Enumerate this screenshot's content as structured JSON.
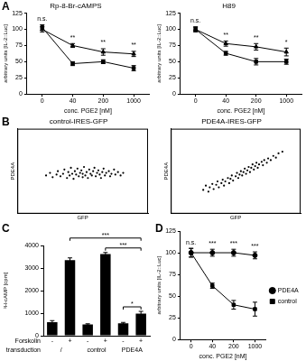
{
  "chart_data": [
    {
      "panel": "A",
      "type": "line",
      "title": "Rp-8-Br-cAMPS",
      "x_label": "conc. PGE2 [nM]",
      "y_label": "arbitrary units [IL-2::Luc]",
      "categories": [
        "0",
        "40",
        "200",
        "1000"
      ],
      "ylim": [
        0,
        125
      ],
      "yticks": [
        0,
        25,
        50,
        75,
        100,
        125
      ],
      "grid": false,
      "series": [
        {
          "color": "#000000",
          "marker": "triangle",
          "values": [
            100,
            75,
            65,
            62
          ],
          "errors": [
            4,
            3,
            5,
            4
          ]
        },
        {
          "color": "#000000",
          "marker": "square",
          "values": [
            103,
            47,
            50,
            40
          ],
          "errors": [
            4,
            3,
            3,
            4
          ]
        }
      ],
      "annotations": [
        "n.s.",
        "**",
        "**",
        "**"
      ]
    },
    {
      "type": "line",
      "title": "H89",
      "x_label": "conc. PGE2 [nM]",
      "y_label": "arbitrary units [IL-2::Luc]",
      "categories": [
        "0",
        "40",
        "200",
        "1000"
      ],
      "ylim": [
        0,
        125
      ],
      "yticks": [
        0,
        25,
        50,
        75,
        100,
        125
      ],
      "grid": false,
      "series": [
        {
          "color": "#000000",
          "marker": "triangle",
          "values": [
            100,
            78,
            73,
            65
          ],
          "errors": [
            4,
            4,
            5,
            6
          ]
        },
        {
          "color": "#000000",
          "marker": "square",
          "values": [
            100,
            63,
            50,
            50
          ],
          "errors": [
            3,
            3,
            5,
            4
          ]
        }
      ],
      "annotations": [
        "n.s.",
        "**",
        "**",
        "*"
      ]
    },
    {
      "panel": "B",
      "type": "scatter",
      "title": "control-IRES-GFP",
      "x_label": "GFP",
      "y_label": "PDE4A",
      "xlim": [
        0,
        100
      ],
      "ylim": [
        0,
        100
      ],
      "tick_labels": false,
      "grid": false,
      "color": "#000000",
      "x": [
        22,
        25,
        27,
        30,
        31,
        33,
        35,
        36,
        38,
        39,
        40,
        41,
        42,
        43,
        44,
        45,
        46,
        47,
        48,
        49,
        50,
        50,
        51,
        52,
        53,
        54,
        55,
        56,
        57,
        58,
        59,
        60,
        61,
        62,
        63,
        64,
        65,
        66,
        67,
        68,
        70,
        71,
        72,
        74,
        75,
        77,
        79,
        81
      ],
      "values": [
        45,
        48,
        43,
        46,
        50,
        44,
        47,
        52,
        42,
        49,
        45,
        54,
        47,
        41,
        50,
        46,
        53,
        44,
        48,
        51,
        43,
        47,
        55,
        45,
        49,
        42,
        52,
        47,
        45,
        50,
        54,
        44,
        48,
        51,
        46,
        42,
        49,
        53,
        45,
        48,
        50,
        44,
        47,
        52,
        46,
        49,
        45,
        48
      ]
    },
    {
      "type": "scatter",
      "title": "PDE4A-IRES-GFP",
      "x_label": "GFP",
      "y_label": "PDE4A",
      "xlim": [
        0,
        100
      ],
      "ylim": [
        0,
        100
      ],
      "tick_labels": false,
      "grid": false,
      "color": "#000000",
      "x": [
        25,
        27,
        29,
        30,
        32,
        33,
        35,
        36,
        37,
        39,
        40,
        41,
        42,
        44,
        45,
        46,
        47,
        48,
        50,
        51,
        52,
        53,
        54,
        55,
        56,
        57,
        58,
        59,
        60,
        61,
        62,
        63,
        64,
        65,
        66,
        67,
        68,
        70,
        71,
        72,
        74,
        75,
        77,
        79,
        81,
        83,
        86
      ],
      "values": [
        28,
        33,
        26,
        31,
        35,
        29,
        34,
        38,
        31,
        36,
        40,
        33,
        38,
        42,
        36,
        41,
        45,
        39,
        44,
        48,
        42,
        46,
        50,
        45,
        49,
        53,
        47,
        51,
        55,
        49,
        54,
        58,
        52,
        56,
        60,
        54,
        58,
        61,
        57,
        63,
        60,
        65,
        63,
        68,
        66,
        71,
        73
      ]
    },
    {
      "panel": "C",
      "type": "bar",
      "y_label": "³H-cAMP [cpm]",
      "categories": [
        "-",
        "+",
        "-",
        "+",
        "-",
        "+"
      ],
      "category_row_label": "Forskolin",
      "groups": [
        "/",
        "control",
        "PDE4A"
      ],
      "group_row_label": "transduction",
      "values": [
        600,
        3350,
        500,
        3620,
        550,
        980
      ],
      "errors": [
        70,
        100,
        30,
        70,
        40,
        100
      ],
      "color": "#000000",
      "ylim": [
        0,
        4000
      ],
      "yticks": [
        0,
        1000,
        2000,
        3000,
        4000
      ],
      "grid": false,
      "brackets": [
        {
          "from": 1,
          "to": 5,
          "label": "***"
        },
        {
          "from": 3,
          "to": 5,
          "label": "***"
        },
        {
          "from": 4,
          "to": 5,
          "label": "*"
        }
      ]
    },
    {
      "panel": "D",
      "type": "line",
      "x_label": "conc. PGE2 [nM]",
      "y_label": "arbitrary units [IL-2::Luc]",
      "categories": [
        "0",
        "40",
        "200",
        "1000"
      ],
      "ylim": [
        0,
        125
      ],
      "yticks": [
        0,
        25,
        50,
        75,
        100,
        125
      ],
      "grid": false,
      "legend": "right",
      "series": [
        {
          "name": "PDE4A",
          "color": "#000000",
          "marker": "circle",
          "values": [
            100,
            100,
            100,
            97
          ],
          "errors": [
            5,
            4,
            4,
            4
          ]
        },
        {
          "name": "control",
          "color": "#000000",
          "marker": "square",
          "values": [
            100,
            62,
            40,
            35
          ],
          "errors": [
            5,
            3,
            5,
            8
          ]
        }
      ],
      "annotations": [
        "n.s.",
        "***",
        "***",
        "***"
      ]
    }
  ]
}
